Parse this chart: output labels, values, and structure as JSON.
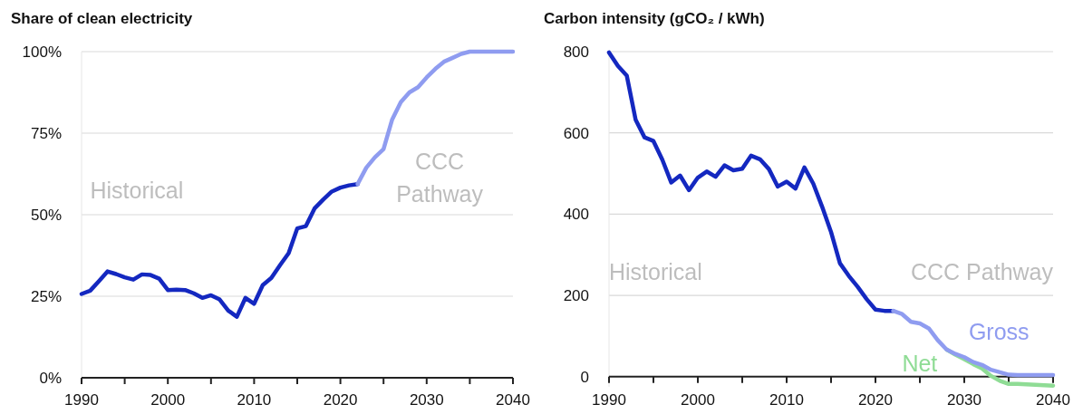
{
  "chart_data": [
    {
      "type": "line",
      "title": "Share of clean electricity",
      "xlim": [
        1990,
        2040
      ],
      "xticks": [
        1990,
        {
          "value": 1995,
          "label": null
        },
        2000,
        {
          "value": 2005,
          "label": null
        },
        2010,
        {
          "value": 2015,
          "label": null
        },
        2020,
        {
          "value": 2025,
          "label": null
        },
        2030,
        {
          "value": 2035,
          "label": null
        },
        2040
      ],
      "ylim": [
        0,
        100
      ],
      "yticks": [
        {
          "value": 0,
          "label": "0%"
        },
        {
          "value": 25,
          "label": "25%"
        },
        {
          "value": 50,
          "label": "50%"
        },
        {
          "value": 75,
          "label": "75%"
        },
        {
          "value": 100,
          "label": "100%"
        }
      ],
      "grid": "y",
      "line_style": "solid",
      "marker": "none",
      "annotations": [
        "Historical",
        "CCC Pathway"
      ],
      "series": [
        {
          "color": "#1428c0",
          "x": [
            1990,
            1991,
            1992,
            1993,
            1994,
            1995,
            1996,
            1997,
            1998,
            1999,
            2000,
            2001,
            2002,
            2003,
            2004,
            2005,
            2006,
            2007,
            2008,
            2009,
            2010,
            2011,
            2012,
            2013,
            2014,
            2015,
            2016,
            2017,
            2018,
            2019,
            2020,
            2021,
            2022
          ],
          "values": [
            25.7,
            26.7,
            29.6,
            32.6,
            31.8,
            30.8,
            30.1,
            31.7,
            31.5,
            30.4,
            26.9,
            27.0,
            26.9,
            25.9,
            24.5,
            25.3,
            24.0,
            20.6,
            18.7,
            24.5,
            22.7,
            28.4,
            30.6,
            34.5,
            38.2,
            45.8,
            46.5,
            51.9,
            54.6,
            57.1,
            58.3,
            59.0,
            59.4
          ]
        },
        {
          "color": "#8f9cf0",
          "x": [
            2022,
            2023,
            2024,
            2025,
            2026,
            2027,
            2028,
            2029,
            2030,
            2031,
            2032,
            2033,
            2034,
            2035,
            2036,
            2037,
            2038,
            2039,
            2040
          ],
          "values": [
            59.4,
            64.4,
            67.6,
            70.1,
            79.2,
            84.5,
            87.5,
            89.1,
            92.1,
            94.7,
            96.9,
            98.1,
            99.3,
            100,
            100,
            100,
            100,
            100,
            100
          ]
        }
      ]
    },
    {
      "type": "line",
      "title": "Carbon intensity (gCO₂ / kWh)",
      "xlim": [
        1990,
        2040
      ],
      "xticks": [
        1990,
        {
          "value": 1995,
          "label": null
        },
        2000,
        {
          "value": 2005,
          "label": null
        },
        2010,
        {
          "value": 2015,
          "label": null
        },
        2020,
        {
          "value": 2025,
          "label": null
        },
        2030,
        {
          "value": 2035,
          "label": null
        },
        2040
      ],
      "ylim": [
        -25,
        800
      ],
      "yticks": [
        0,
        200,
        400,
        600,
        800
      ],
      "grid": "y",
      "line_style": "solid",
      "marker": "none",
      "annotations": [
        "Historical",
        "CCC Pathway"
      ],
      "series": [
        {
          "color": "#1428c0",
          "x": [
            1990,
            1991,
            1992,
            1993,
            1994,
            1995,
            1996,
            1997,
            1998,
            1999,
            2000,
            2001,
            2002,
            2003,
            2004,
            2005,
            2006,
            2007,
            2008,
            2009,
            2010,
            2011,
            2012,
            2013,
            2014,
            2015,
            2016,
            2017,
            2018,
            2019,
            2020,
            2021,
            2022
          ],
          "values": [
            798,
            765,
            741,
            632,
            589,
            580,
            534,
            478,
            495,
            459,
            490,
            505,
            492,
            520,
            508,
            512,
            544,
            535,
            511,
            468,
            480,
            463,
            515,
            475,
            418,
            356,
            279,
            248,
            221,
            191,
            165,
            162,
            162
          ]
        },
        {
          "name": "Net",
          "color": "#8fdc95",
          "x": [
            2028,
            2029,
            2030,
            2031,
            2032,
            2033,
            2034,
            2035,
            2036,
            2037,
            2038,
            2039,
            2040
          ],
          "values": [
            67,
            54,
            43,
            31,
            20,
            2,
            -10,
            -18,
            -18,
            -19,
            -20,
            -21,
            -22
          ]
        },
        {
          "name": "Gross",
          "color": "#8f9cf0",
          "x": [
            2022,
            2023,
            2024,
            2025,
            2026,
            2027,
            2028,
            2029,
            2030,
            2031,
            2032,
            2033,
            2034,
            2035,
            2036,
            2037,
            2038,
            2039,
            2040
          ],
          "values": [
            162,
            154,
            135,
            131,
            119,
            90,
            67,
            56,
            48,
            36,
            29,
            17,
            11,
            5,
            4,
            4,
            4,
            4,
            4
          ]
        }
      ]
    }
  ]
}
